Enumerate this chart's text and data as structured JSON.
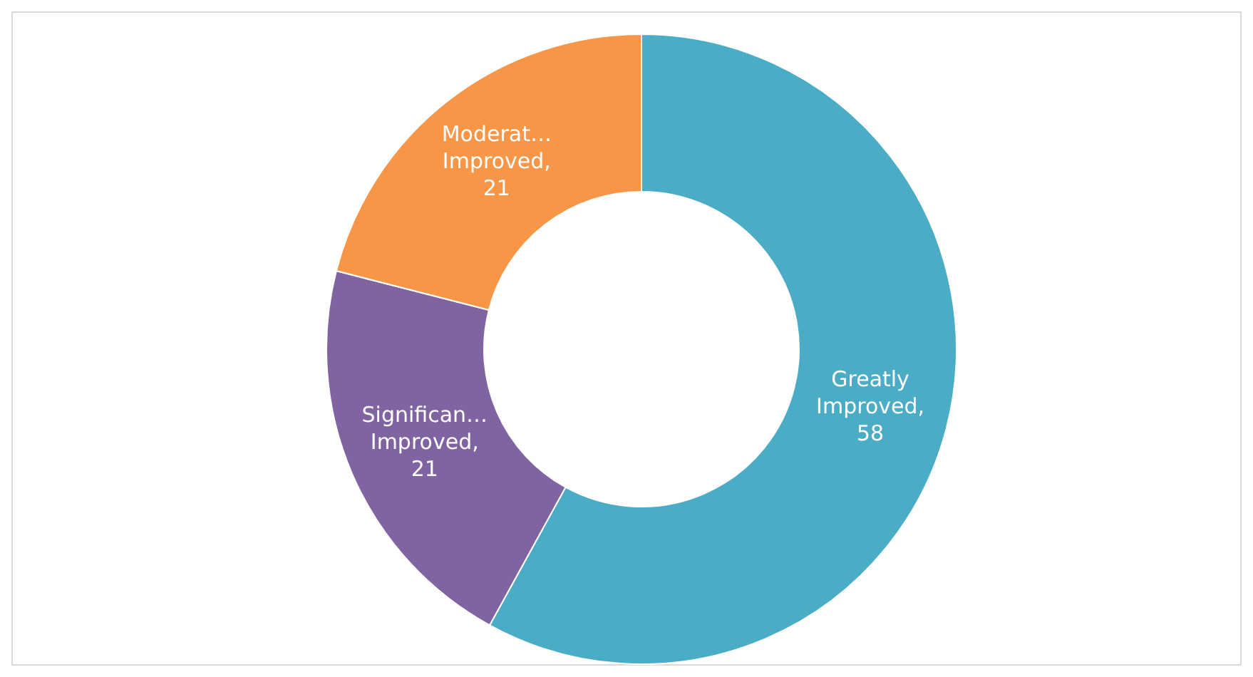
{
  "chart_data": {
    "type": "donut",
    "categories": [
      "Greatly Improved",
      "Significan… Improved",
      "Moderat… Improved"
    ],
    "values": [
      58,
      21,
      21
    ],
    "value_labels": [
      ", 58",
      ", 21",
      ", 21"
    ],
    "colors": [
      "#4bacc6",
      "#8064a2",
      "#f79646"
    ],
    "legend": false
  }
}
